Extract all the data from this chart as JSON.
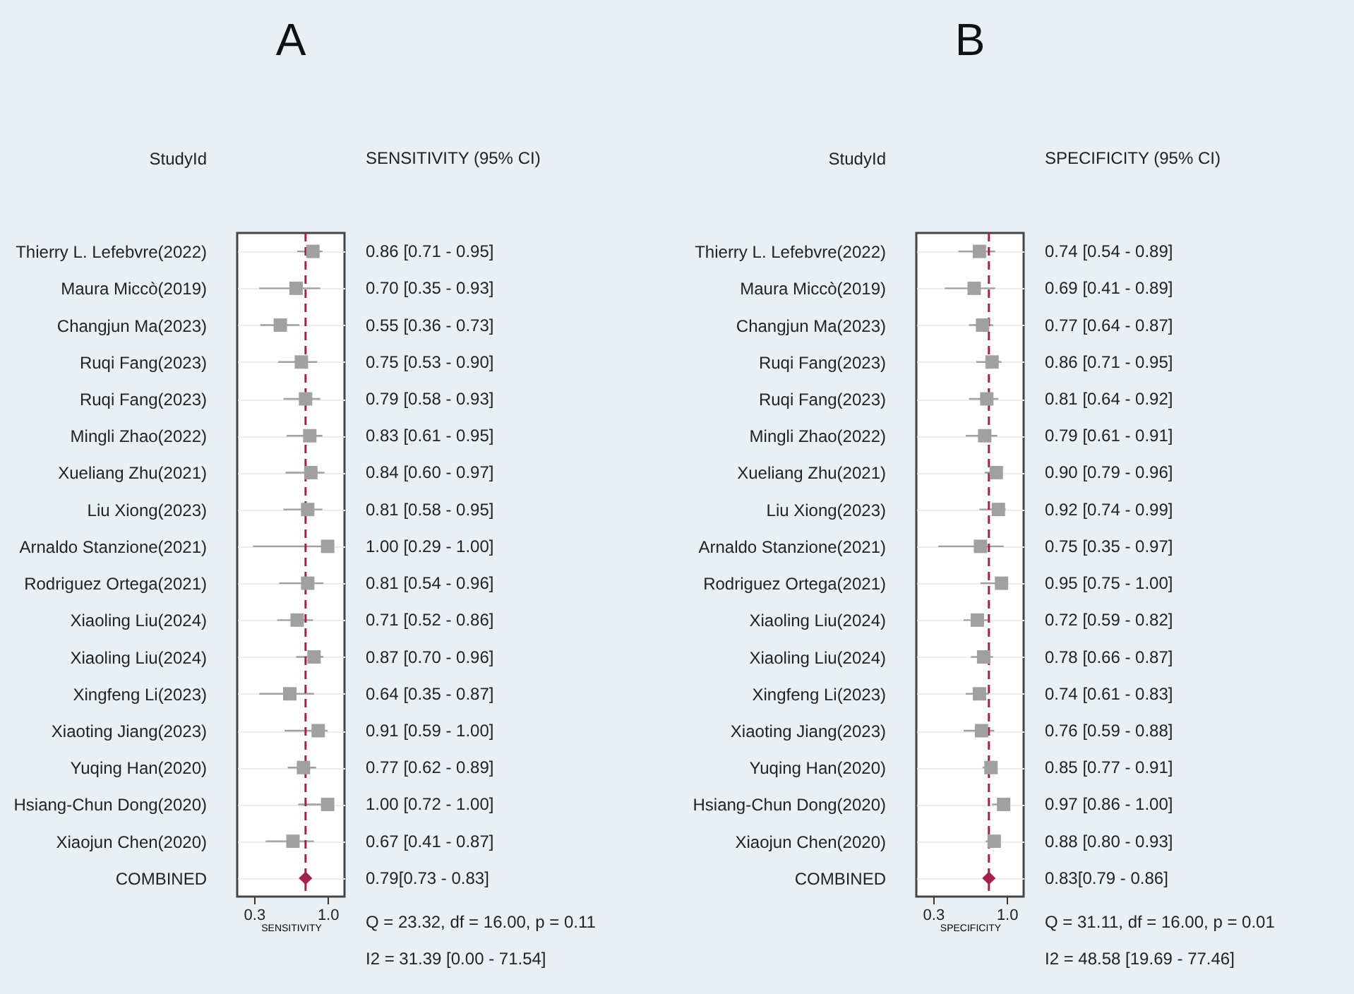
{
  "chart_data": [
    {
      "type": "scatter",
      "title": "A",
      "ylabel": "StudyId",
      "xlabel": "SENSITIVITY",
      "orientation": "horizontal",
      "grid": "y",
      "categories": [
        "Thierry L. Lefebvre(2022)",
        "Maura Miccò(2019)",
        "Changjun Ma(2023)",
        "Ruqi Fang(2023)",
        "Ruqi Fang(2023)",
        "Mingli Zhao(2022)",
        "Xueliang Zhu(2021)",
        "Liu Xiong(2023)",
        "Arnaldo Stanzione(2021)",
        "Rodriguez Ortega(2021)",
        "Xiaoling Liu(2024)",
        "Xiaoling Liu(2024)",
        "Xingfeng Li(2023)",
        "Xiaoting Jiang(2023)",
        "Yuqing Han(2020)",
        "Hsiang-Chun Dong(2020)",
        "Xiaojun Chen(2020)",
        "COMBINED"
      ],
      "xlim": [
        0.14,
        1.16
      ],
      "xticks": [
        0.3,
        {
          "value": 1,
          "label": "1.0"
        }
      ],
      "series": [
        {
          "color": "#a0a0a0",
          "marker": "square",
          "values": [
            0.86,
            0.7,
            0.55,
            0.75,
            0.79,
            0.83,
            0.84,
            0.81,
            1.0,
            0.81,
            0.71,
            0.87,
            0.64,
            0.91,
            0.77,
            1.0,
            0.67,
            null
          ],
          "errors": [
            [
              0.71,
              0.95
            ],
            [
              0.35,
              0.93
            ],
            [
              0.36,
              0.73
            ],
            [
              0.53,
              0.9
            ],
            [
              0.58,
              0.93
            ],
            [
              0.61,
              0.95
            ],
            [
              0.6,
              0.97
            ],
            [
              0.58,
              0.95
            ],
            [
              0.29,
              1.0
            ],
            [
              0.54,
              0.96
            ],
            [
              0.52,
              0.86
            ],
            [
              0.7,
              0.96
            ],
            [
              0.35,
              0.87
            ],
            [
              0.59,
              1.0
            ],
            [
              0.62,
              0.89
            ],
            [
              0.72,
              1.0
            ],
            [
              0.41,
              0.87
            ],
            null
          ],
          "value_labels": [
            "0.86 [0.71 - 0.95]",
            "0.70 [0.35 - 0.93]",
            "0.55 [0.36 - 0.73]",
            "0.75 [0.53 - 0.90]",
            "0.79 [0.58 - 0.93]",
            "0.83 [0.61 - 0.95]",
            "0.84 [0.60 - 0.97]",
            "0.81 [0.58 - 0.95]",
            "1.00 [0.29 - 1.00]",
            "0.81 [0.54 - 0.96]",
            "0.71 [0.52 - 0.86]",
            "0.87 [0.70 - 0.96]",
            "0.64 [0.35 - 0.87]",
            "0.91 [0.59 - 1.00]",
            "0.77 [0.62 - 0.89]",
            "1.00 [0.72 - 1.00]",
            "0.67 [0.41 - 0.87]",
            null
          ]
        },
        {
          "color": "#a3214a",
          "marker": "diamond",
          "values": [
            null,
            null,
            null,
            null,
            null,
            null,
            null,
            null,
            null,
            null,
            null,
            null,
            null,
            null,
            null,
            null,
            null,
            0.79
          ],
          "errors": [
            null,
            null,
            null,
            null,
            null,
            null,
            null,
            null,
            null,
            null,
            null,
            null,
            null,
            null,
            null,
            null,
            null,
            [
              0.73,
              0.83
            ]
          ],
          "value_labels": [
            null,
            null,
            null,
            null,
            null,
            null,
            null,
            null,
            null,
            null,
            null,
            null,
            null,
            null,
            null,
            null,
            null,
            "0.79[0.73 - 0.83]"
          ]
        }
      ],
      "ref_lines": [
        {
          "axis": "x",
          "value": 0.79,
          "color": "#a3214a",
          "line_style": "dashed"
        }
      ],
      "annotations": [
        "SENSITIVITY (95% CI)",
        "Q = 23.32, df = 16.00, p =  0.11",
        "I2 = 31.39 [0.00 - 71.54]"
      ]
    },
    {
      "type": "scatter",
      "title": "B",
      "ylabel": "StudyId",
      "xlabel": "SPECIFICITY",
      "orientation": "horizontal",
      "grid": "y",
      "categories": [
        "Thierry L. Lefebvre(2022)",
        "Maura Miccò(2019)",
        "Changjun Ma(2023)",
        "Ruqi Fang(2023)",
        "Ruqi Fang(2023)",
        "Mingli Zhao(2022)",
        "Xueliang Zhu(2021)",
        "Liu Xiong(2023)",
        "Arnaldo Stanzione(2021)",
        "Rodriguez Ortega(2021)",
        "Xiaoling Liu(2024)",
        "Xiaoling Liu(2024)",
        "Xingfeng Li(2023)",
        "Xiaoting Jiang(2023)",
        "Yuqing Han(2020)",
        "Hsiang-Chun Dong(2020)",
        "Xiaojun Chen(2020)",
        "COMBINED"
      ],
      "xlim": [
        0.14,
        1.16
      ],
      "xticks": [
        0.3,
        {
          "value": 1,
          "label": "1.0"
        }
      ],
      "series": [
        {
          "color": "#a0a0a0",
          "marker": "square",
          "values": [
            0.74,
            0.69,
            0.77,
            0.86,
            0.81,
            0.79,
            0.9,
            0.92,
            0.75,
            0.95,
            0.72,
            0.78,
            0.74,
            0.76,
            0.85,
            0.97,
            0.88,
            null
          ],
          "errors": [
            [
              0.54,
              0.89
            ],
            [
              0.41,
              0.89
            ],
            [
              0.64,
              0.87
            ],
            [
              0.71,
              0.95
            ],
            [
              0.64,
              0.92
            ],
            [
              0.61,
              0.91
            ],
            [
              0.79,
              0.96
            ],
            [
              0.74,
              0.99
            ],
            [
              0.35,
              0.97
            ],
            [
              0.75,
              1.0
            ],
            [
              0.59,
              0.82
            ],
            [
              0.66,
              0.87
            ],
            [
              0.61,
              0.83
            ],
            [
              0.59,
              0.88
            ],
            [
              0.77,
              0.91
            ],
            [
              0.86,
              1.0
            ],
            [
              0.8,
              0.93
            ],
            null
          ],
          "value_labels": [
            "0.74 [0.54 - 0.89]",
            "0.69 [0.41 - 0.89]",
            "0.77 [0.64 - 0.87]",
            "0.86 [0.71 - 0.95]",
            "0.81 [0.64 - 0.92]",
            "0.79 [0.61 - 0.91]",
            "0.90 [0.79 - 0.96]",
            "0.92 [0.74 - 0.99]",
            "0.75 [0.35 - 0.97]",
            "0.95 [0.75 - 1.00]",
            "0.72 [0.59 - 0.82]",
            "0.78 [0.66 - 0.87]",
            "0.74 [0.61 - 0.83]",
            "0.76 [0.59 - 0.88]",
            "0.85 [0.77 - 0.91]",
            "0.97 [0.86 - 1.00]",
            "0.88 [0.80 - 0.93]",
            null
          ]
        },
        {
          "color": "#a3214a",
          "marker": "diamond",
          "values": [
            null,
            null,
            null,
            null,
            null,
            null,
            null,
            null,
            null,
            null,
            null,
            null,
            null,
            null,
            null,
            null,
            null,
            0.83
          ],
          "errors": [
            null,
            null,
            null,
            null,
            null,
            null,
            null,
            null,
            null,
            null,
            null,
            null,
            null,
            null,
            null,
            null,
            null,
            [
              0.79,
              0.86
            ]
          ],
          "value_labels": [
            null,
            null,
            null,
            null,
            null,
            null,
            null,
            null,
            null,
            null,
            null,
            null,
            null,
            null,
            null,
            null,
            null,
            "0.83[0.79 - 0.86]"
          ]
        }
      ],
      "ref_lines": [
        {
          "axis": "x",
          "value": 0.83,
          "color": "#a3214a",
          "line_style": "dashed"
        }
      ],
      "annotations": [
        "SPECIFICITY (95% CI)",
        "Q = 31.11, df = 16.00, p =  0.01",
        "I2 = 48.58 [19.69 - 77.46]"
      ]
    }
  ]
}
